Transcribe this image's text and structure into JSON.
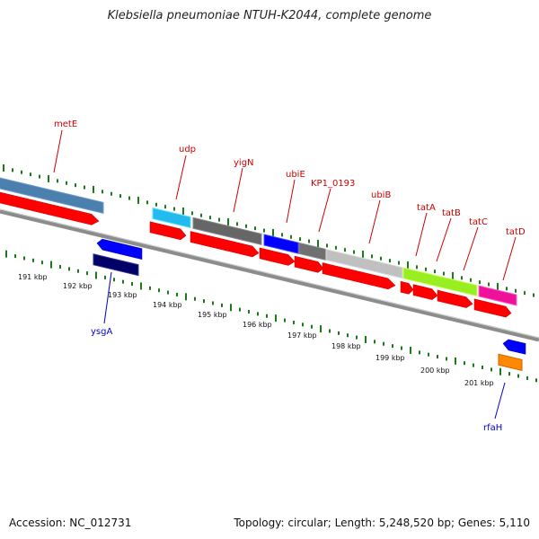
{
  "title": "Klebsiella pneumoniae NTUH-K2044, complete genome",
  "footer": {
    "accession": "Accession: NC_012731",
    "summary": "Topology: circular; Length: 5,248,520 bp; Genes: 5,110"
  },
  "scale_labels": [
    "191 kbp",
    "192 kbp",
    "193 kbp",
    "194 kbp",
    "195 kbp",
    "196 kbp",
    "197 kbp",
    "198 kbp",
    "199 kbp",
    "200 kbp",
    "201 kbp"
  ],
  "gene_labels": {
    "forward": [
      "metE",
      "udp",
      "yigN",
      "ubiE",
      "KP1_0193",
      "ubiB",
      "tatA",
      "tatB",
      "tatC",
      "tatD"
    ],
    "reverse": [
      "ysgA",
      "rfaH"
    ]
  },
  "colors": {
    "forward_label": "#cc0000",
    "reverse_label": "#0000cc",
    "cds": "#ff0000",
    "backbone": "#8c8c8c",
    "tick": "#1a7a1a"
  }
}
